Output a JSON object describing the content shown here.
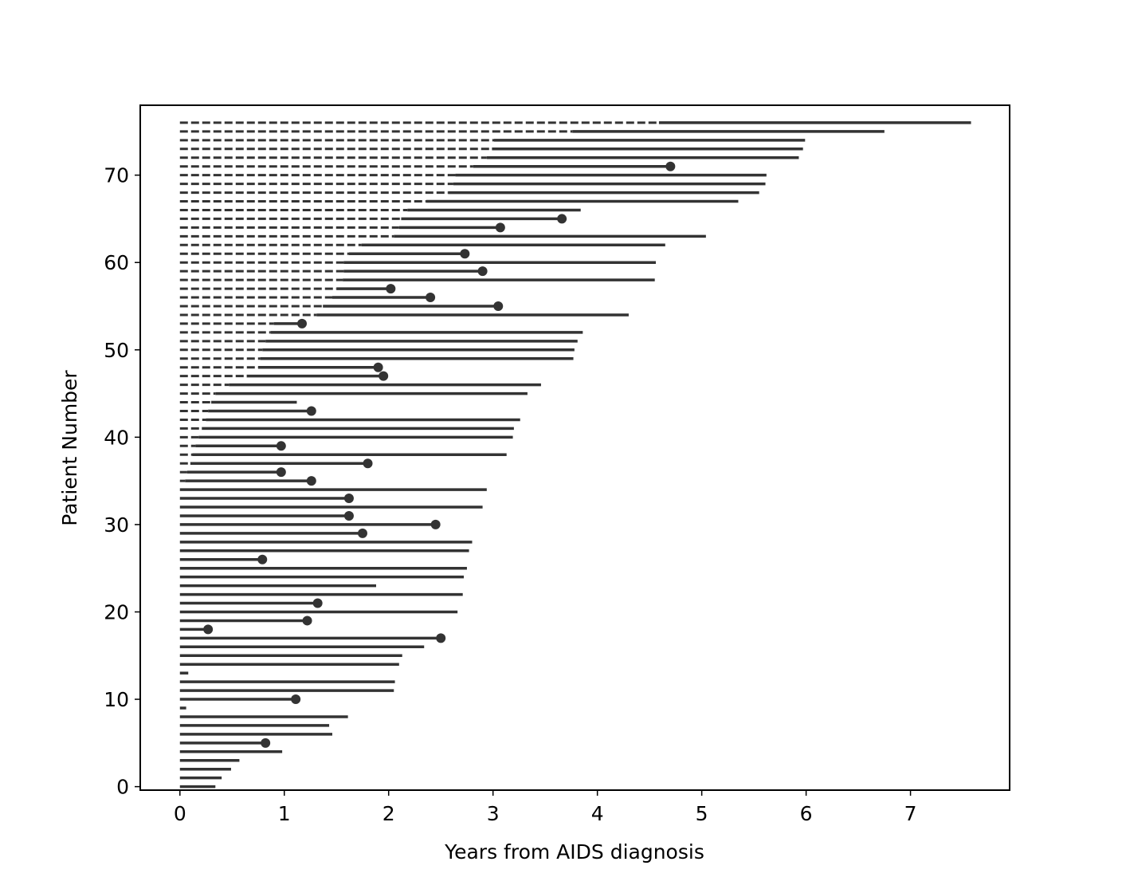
{
  "chart_data": {
    "type": "line",
    "title": "",
    "xlabel": "Years from AIDS diagnosis",
    "ylabel": "Patient Number",
    "xlim": [
      -0.38,
      7.95
    ],
    "ylim": [
      -0.4,
      78.0
    ],
    "xticks": [
      0,
      1,
      2,
      3,
      4,
      5,
      6,
      7
    ],
    "yticks": [
      0,
      10,
      20,
      30,
      40,
      50,
      60,
      70
    ],
    "grid": false,
    "colors": {
      "line": "#333333",
      "axis": "#000000",
      "background": "#ffffff"
    },
    "series": [
      {
        "values": [
          {
            "patient": 0,
            "entry": 0,
            "end": 0.34,
            "event": false
          },
          {
            "patient": 1,
            "entry": 0,
            "end": 0.4,
            "event": false
          },
          {
            "patient": 2,
            "entry": 0,
            "end": 0.49,
            "event": false
          },
          {
            "patient": 3,
            "entry": 0,
            "end": 0.57,
            "event": false
          },
          {
            "patient": 4,
            "entry": 0,
            "end": 0.98,
            "event": false
          },
          {
            "patient": 5,
            "entry": 0,
            "end": 0.82,
            "event": true
          },
          {
            "patient": 6,
            "entry": 0,
            "end": 1.46,
            "event": false
          },
          {
            "patient": 7,
            "entry": 0,
            "end": 1.43,
            "event": false
          },
          {
            "patient": 8,
            "entry": 0,
            "end": 1.61,
            "event": false
          },
          {
            "patient": 9,
            "entry": 0,
            "end": 0.06,
            "event": false
          },
          {
            "patient": 10,
            "entry": 0,
            "end": 1.11,
            "event": true
          },
          {
            "patient": 11,
            "entry": 0,
            "end": 2.05,
            "event": false
          },
          {
            "patient": 12,
            "entry": 0,
            "end": 2.06,
            "event": false
          },
          {
            "patient": 13,
            "entry": 0,
            "end": 0.08,
            "event": false
          },
          {
            "patient": 14,
            "entry": 0,
            "end": 2.1,
            "event": false
          },
          {
            "patient": 15,
            "entry": 0,
            "end": 2.13,
            "event": false
          },
          {
            "patient": 16,
            "entry": 0,
            "end": 2.34,
            "event": false
          },
          {
            "patient": 17,
            "entry": 0,
            "end": 2.5,
            "event": true
          },
          {
            "patient": 18,
            "entry": 0,
            "end": 0.27,
            "event": true
          },
          {
            "patient": 19,
            "entry": 0,
            "end": 1.22,
            "event": true
          },
          {
            "patient": 20,
            "entry": 0,
            "end": 2.66,
            "event": false
          },
          {
            "patient": 21,
            "entry": 0,
            "end": 1.32,
            "event": true
          },
          {
            "patient": 22,
            "entry": 0,
            "end": 2.71,
            "event": false
          },
          {
            "patient": 23,
            "entry": 0,
            "end": 1.88,
            "event": false
          },
          {
            "patient": 24,
            "entry": 0,
            "end": 2.72,
            "event": false
          },
          {
            "patient": 25,
            "entry": 0,
            "end": 2.75,
            "event": false
          },
          {
            "patient": 26,
            "entry": 0,
            "end": 0.79,
            "event": true
          },
          {
            "patient": 27,
            "entry": 0,
            "end": 2.77,
            "event": false
          },
          {
            "patient": 28,
            "entry": 0,
            "end": 2.8,
            "event": false
          },
          {
            "patient": 29,
            "entry": 0,
            "end": 1.75,
            "event": true
          },
          {
            "patient": 30,
            "entry": 0,
            "end": 2.45,
            "event": true
          },
          {
            "patient": 31,
            "entry": 0,
            "end": 1.62,
            "event": true
          },
          {
            "patient": 32,
            "entry": 0,
            "end": 2.9,
            "event": false
          },
          {
            "patient": 33,
            "entry": 0,
            "end": 1.62,
            "event": true
          },
          {
            "patient": 34,
            "entry": 0,
            "end": 2.94,
            "event": false
          },
          {
            "patient": 35,
            "entry": 0.05,
            "end": 1.26,
            "event": true
          },
          {
            "patient": 36,
            "entry": 0.07,
            "end": 0.97,
            "event": true
          },
          {
            "patient": 37,
            "entry": 0.1,
            "end": 1.8,
            "event": true
          },
          {
            "patient": 38,
            "entry": 0.12,
            "end": 3.13,
            "event": false
          },
          {
            "patient": 39,
            "entry": 0.15,
            "end": 0.97,
            "event": true
          },
          {
            "patient": 40,
            "entry": 0.18,
            "end": 3.19,
            "event": false
          },
          {
            "patient": 41,
            "entry": 0.21,
            "end": 3.2,
            "event": false
          },
          {
            "patient": 42,
            "entry": 0.25,
            "end": 3.26,
            "event": false
          },
          {
            "patient": 43,
            "entry": 0.27,
            "end": 1.26,
            "event": true
          },
          {
            "patient": 44,
            "entry": 0.3,
            "end": 1.12,
            "event": false
          },
          {
            "patient": 45,
            "entry": 0.34,
            "end": 3.33,
            "event": false
          },
          {
            "patient": 46,
            "entry": 0.47,
            "end": 3.46,
            "event": false
          },
          {
            "patient": 47,
            "entry": 0.64,
            "end": 1.95,
            "event": true
          },
          {
            "patient": 48,
            "entry": 0.75,
            "end": 1.9,
            "event": true
          },
          {
            "patient": 49,
            "entry": 0.77,
            "end": 3.77,
            "event": false
          },
          {
            "patient": 50,
            "entry": 0.79,
            "end": 3.78,
            "event": false
          },
          {
            "patient": 51,
            "entry": 0.82,
            "end": 3.81,
            "event": false
          },
          {
            "patient": 52,
            "entry": 0.87,
            "end": 3.86,
            "event": false
          },
          {
            "patient": 53,
            "entry": 0.9,
            "end": 1.17,
            "event": true
          },
          {
            "patient": 54,
            "entry": 1.31,
            "end": 4.3,
            "event": false
          },
          {
            "patient": 55,
            "entry": 1.37,
            "end": 3.05,
            "event": true
          },
          {
            "patient": 56,
            "entry": 1.46,
            "end": 2.4,
            "event": true
          },
          {
            "patient": 57,
            "entry": 1.5,
            "end": 2.02,
            "event": true
          },
          {
            "patient": 58,
            "entry": 1.56,
            "end": 4.55,
            "event": false
          },
          {
            "patient": 59,
            "entry": 1.57,
            "end": 2.9,
            "event": true
          },
          {
            "patient": 60,
            "entry": 1.57,
            "end": 4.56,
            "event": false
          },
          {
            "patient": 61,
            "entry": 1.62,
            "end": 2.73,
            "event": true
          },
          {
            "patient": 62,
            "entry": 1.74,
            "end": 4.65,
            "event": false
          },
          {
            "patient": 63,
            "entry": 2.05,
            "end": 5.04,
            "event": false
          },
          {
            "patient": 64,
            "entry": 2.1,
            "end": 3.07,
            "event": true
          },
          {
            "patient": 65,
            "entry": 2.12,
            "end": 3.66,
            "event": true
          },
          {
            "patient": 66,
            "entry": 2.18,
            "end": 3.84,
            "event": false
          },
          {
            "patient": 67,
            "entry": 2.36,
            "end": 5.35,
            "event": false
          },
          {
            "patient": 68,
            "entry": 2.57,
            "end": 5.55,
            "event": false
          },
          {
            "patient": 69,
            "entry": 2.62,
            "end": 5.61,
            "event": false
          },
          {
            "patient": 70,
            "entry": 2.64,
            "end": 5.62,
            "event": false
          },
          {
            "patient": 71,
            "entry": 2.81,
            "end": 4.7,
            "event": true
          },
          {
            "patient": 72,
            "entry": 2.94,
            "end": 5.93,
            "event": false
          },
          {
            "patient": 73,
            "entry": 2.99,
            "end": 5.97,
            "event": false
          },
          {
            "patient": 74,
            "entry": 3.01,
            "end": 5.99,
            "event": false
          },
          {
            "patient": 75,
            "entry": 3.76,
            "end": 6.75,
            "event": false
          },
          {
            "patient": 76,
            "entry": 4.59,
            "end": 7.58,
            "event": false
          }
        ]
      }
    ]
  }
}
